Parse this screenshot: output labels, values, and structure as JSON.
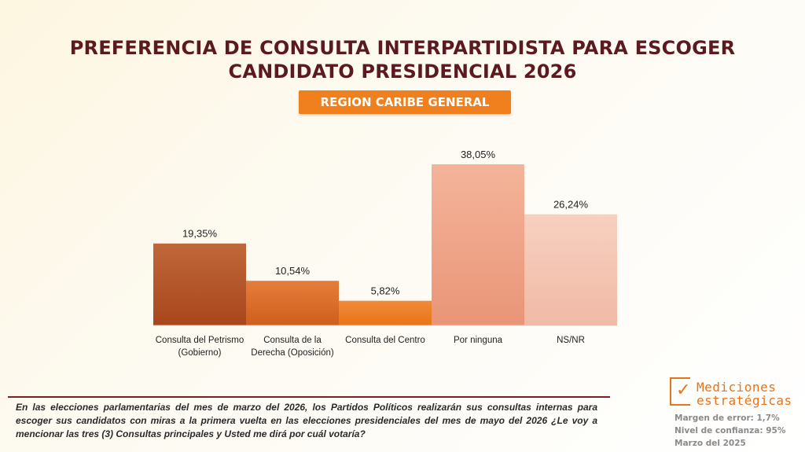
{
  "title_line1": "PREFERENCIA DE CONSULTA INTERPARTIDISTA PARA ESCOGER",
  "title_line2": "CANDIDATO PRESIDENCIAL 2026",
  "subtitle": "REGION CARIBE GENERAL",
  "chart_data": {
    "type": "bar",
    "title": "PREFERENCIA DE CONSULTA INTERPARTIDISTA PARA ESCOGER CANDIDATO PRESIDENCIAL 2026",
    "subtitle": "REGION CARIBE GENERAL",
    "categories": [
      [
        "Consulta del Petrismo",
        "(Gobierno)"
      ],
      [
        "Consulta de la",
        "Derecha (Oposición)"
      ],
      [
        "Consulta del Centro"
      ],
      [
        "Por ninguna"
      ],
      [
        "NS/NR"
      ]
    ],
    "values": [
      19.35,
      10.54,
      5.82,
      38.05,
      26.24
    ],
    "value_labels": [
      "19,35%",
      "10,54%",
      "5,82%",
      "38,05%",
      "26,24%"
    ],
    "colors": [
      [
        "#c0683a",
        "#a8461b"
      ],
      [
        "#e57d3a",
        "#cf5f1c"
      ],
      [
        "#f08a3a",
        "#ea7418"
      ],
      [
        "#f4b49a",
        "#e99577"
      ],
      [
        "#f8d0c0",
        "#f0baa6"
      ]
    ],
    "ylim": [
      0,
      38.05
    ],
    "xlabel": "",
    "ylabel": "",
    "grid": false,
    "legend": "none"
  },
  "question": "En las elecciones parlamentarias del mes de marzo del 2026, los Partidos Políticos realizarán sus consultas internas para escoger sus candidatos con miras a la primera vuelta en las elecciones presidenciales del mes de mayo del 2026 ¿Le voy a mencionar las tres (3) Consultas principales y Usted me dirá  por cuál votaría?",
  "logo_line1": "Mediciones",
  "logo_line2": "estratégicas",
  "logo_mark": "✓",
  "margin_error": "Margen de error: 1,7%",
  "confidence": "Nivel de confianza: 95%",
  "date": "Marzo del 2025"
}
